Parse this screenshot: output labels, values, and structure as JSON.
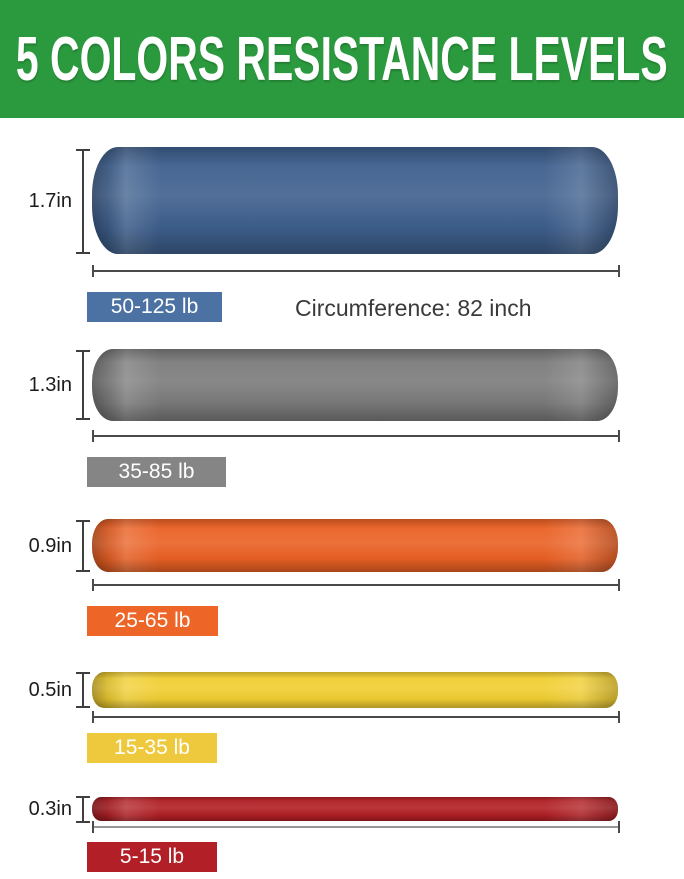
{
  "header": {
    "title": "5 COLORS RESISTANCE LEVELS",
    "bg_color": "#2b9a3e",
    "text_color": "#ffffff"
  },
  "circumference_note": "Circumference: 82 inch",
  "bands": [
    {
      "name": "blue",
      "width_label": "1.7in",
      "resistance_label": "50-125 lb",
      "color": "#3e5f8d",
      "badge_color": "#4b72a3"
    },
    {
      "name": "gray",
      "width_label": "1.3in",
      "resistance_label": "35-85 lb",
      "color": "#7b7b7b",
      "badge_color": "#858585"
    },
    {
      "name": "orange",
      "width_label": "0.9in",
      "resistance_label": "25-65 lb",
      "color": "#ea6024",
      "badge_color": "#ed6527"
    },
    {
      "name": "yellow",
      "width_label": "0.5in",
      "resistance_label": "15-35 lb",
      "color": "#f1ce31",
      "badge_color": "#efc93d"
    },
    {
      "name": "red",
      "width_label": "0.3in",
      "resistance_label": "5-15 lb",
      "color": "#b01f24",
      "badge_color": "#b21f26"
    }
  ]
}
